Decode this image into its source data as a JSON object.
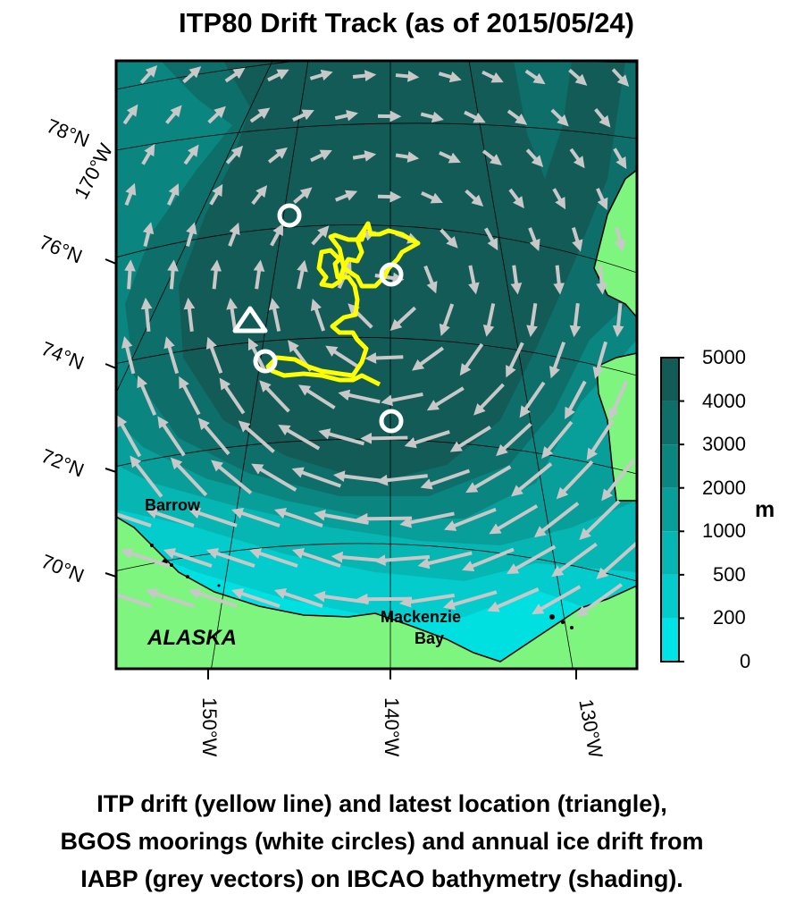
{
  "title": "ITP80 Drift Track (as of 2015/05/24)",
  "map": {
    "latitude_labels": [
      "78°N",
      "76°N",
      "74°N",
      "72°N",
      "70°N"
    ],
    "longitude_labels": [
      "150°W",
      "140°W",
      "130°W"
    ],
    "edge_label": "170°W",
    "places": {
      "barrow": "Barrow",
      "alaska": "ALASKA",
      "mackenzie_line1": "Mackenzie",
      "mackenzie_line2": "Bay"
    },
    "colors": {
      "land": "#7ef57e",
      "track": "#ffff00",
      "vectors": "#c8c8c8",
      "deep": "#0e5a55",
      "shallow": "#00e6e6"
    },
    "markers": {
      "latest_location": "triangle",
      "moorings": "circle"
    }
  },
  "colorbar": {
    "unit": "m",
    "ticks": [
      "5000",
      "4000",
      "3000",
      "2000",
      "1000",
      "500",
      "200",
      "0"
    ],
    "colors": [
      "#125b57",
      "#0e6e6a",
      "#0b8580",
      "#089e99",
      "#06b6b2",
      "#04cccc",
      "#00e3e6"
    ]
  },
  "caption": [
    "ITP drift (yellow line) and latest location (triangle),",
    "BGOS moorings (white circles) and annual ice drift from",
    "IABP (grey vectors) on IBCAO bathymetry (shading)."
  ]
}
